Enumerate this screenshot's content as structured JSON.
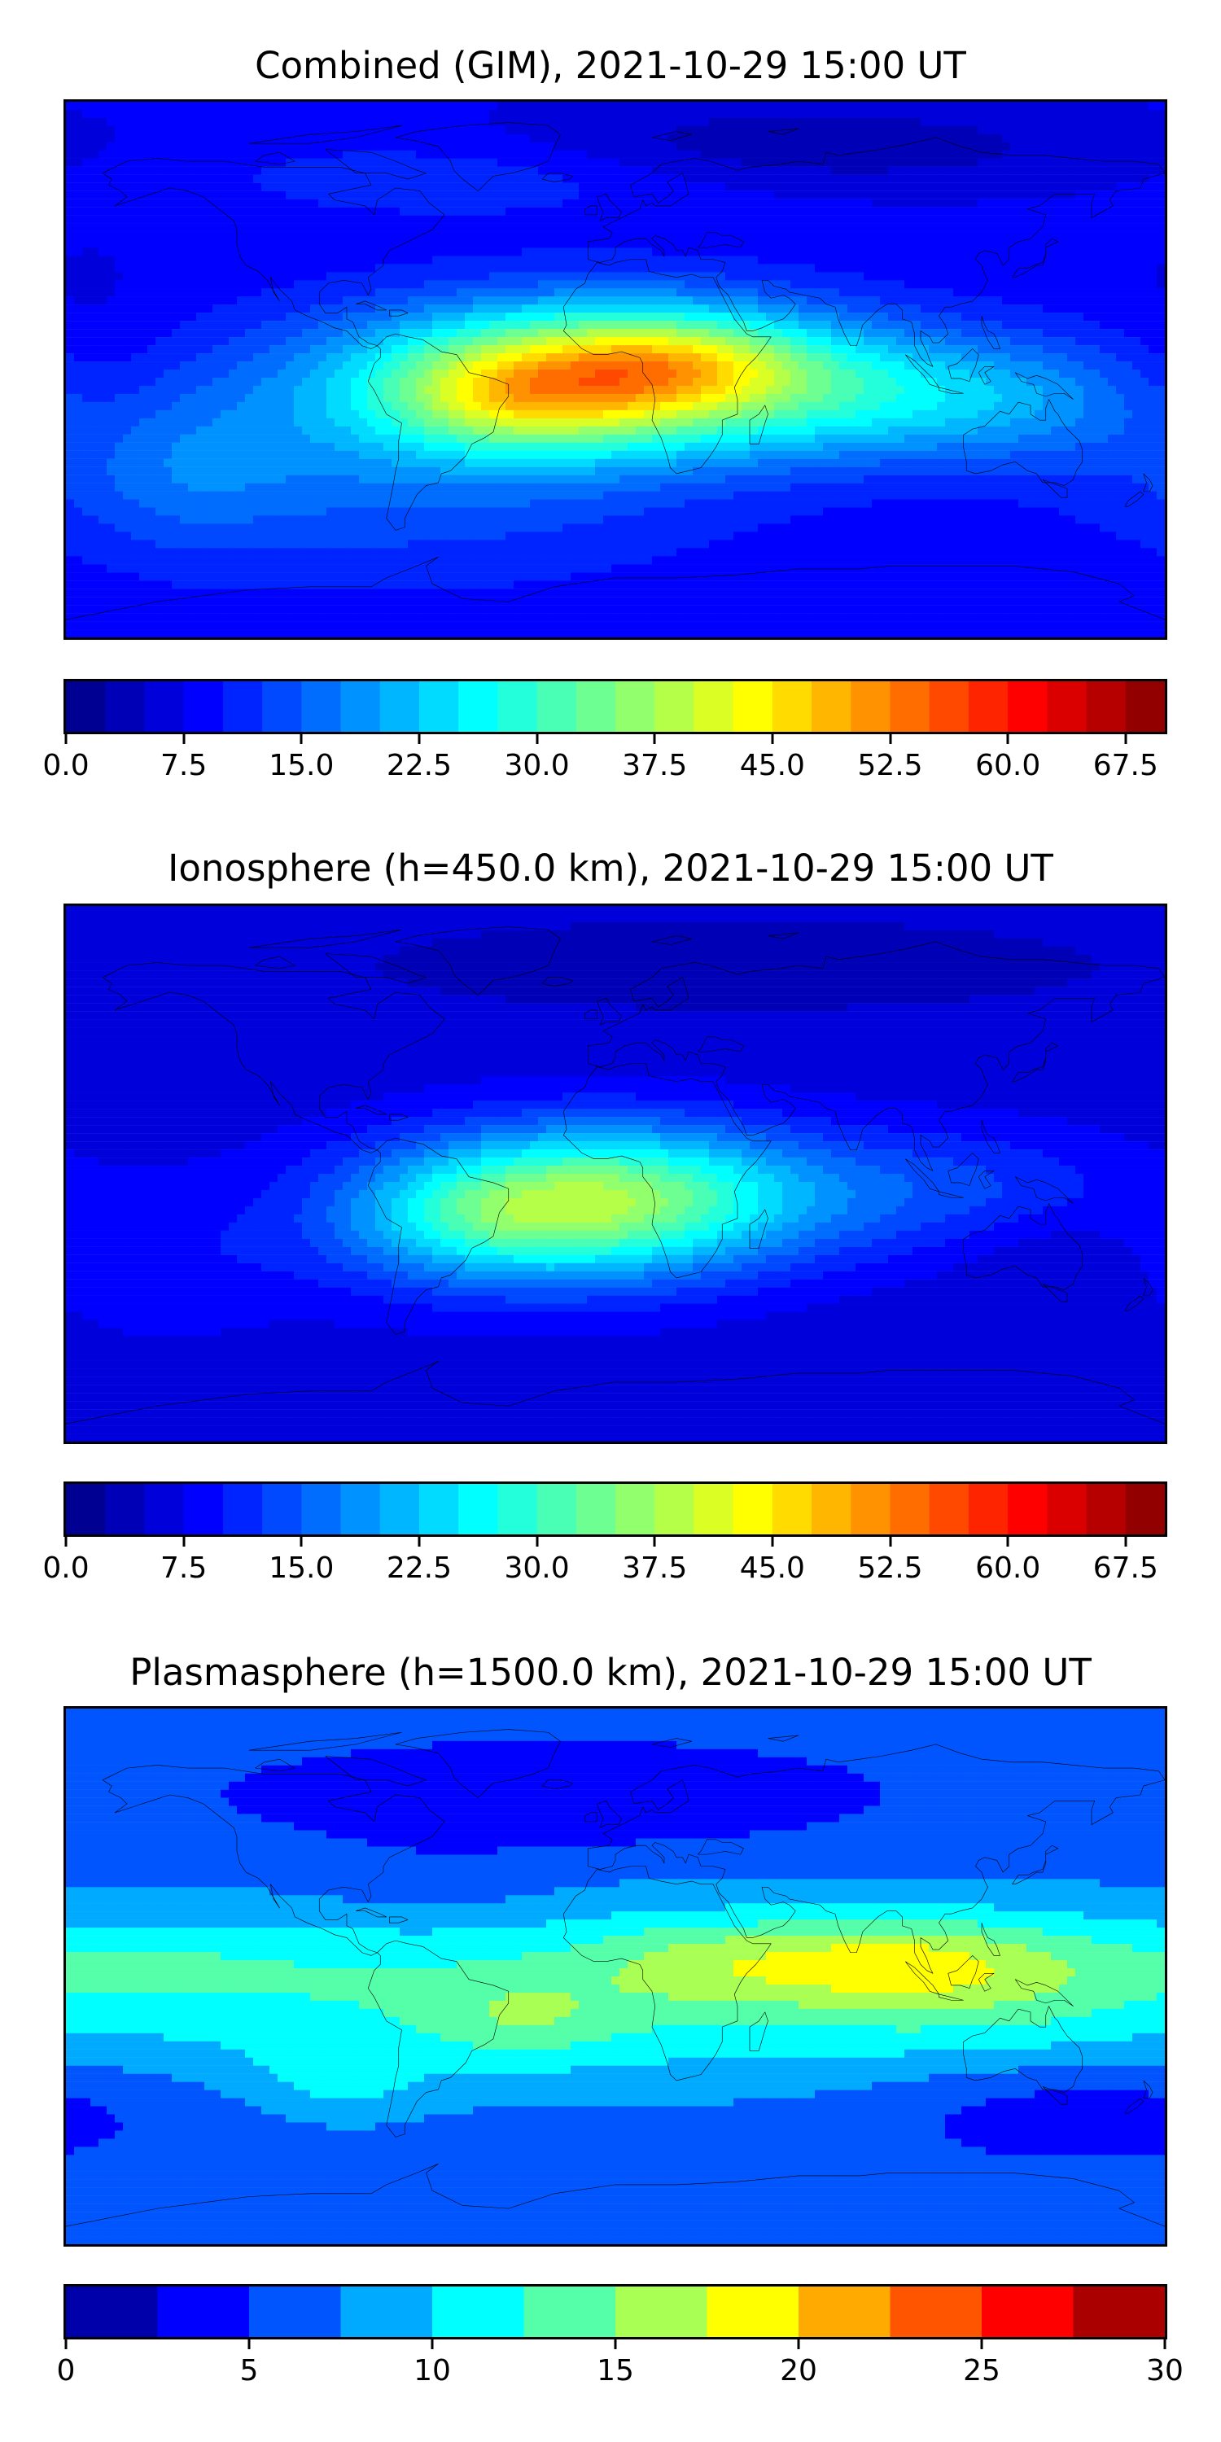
{
  "panels": [
    {
      "title": "Combined (GIM), 2021-10-29 15:00 UT",
      "colorbar": {
        "min": 0.0,
        "max": 70.0,
        "levels": 28,
        "tick_labels": [
          "0.0",
          "7.5",
          "15.0",
          "22.5",
          "30.0",
          "37.5",
          "45.0",
          "52.5",
          "60.0",
          "67.5"
        ],
        "tick_values": [
          0.0,
          7.5,
          15.0,
          22.5,
          30.0,
          37.5,
          45.0,
          52.5,
          60.0,
          67.5
        ]
      },
      "field": {
        "base": 8,
        "features": [
          {
            "lon": -75,
            "lat": -28,
            "amp": 8,
            "slon": 80,
            "slat": 28
          },
          {
            "lon": 0,
            "lat": -2,
            "amp": 34,
            "slon": 55,
            "slat": 17
          },
          {
            "lon": -35,
            "lat": -10,
            "amp": 10,
            "slon": 28,
            "slat": 12
          },
          {
            "lon": 20,
            "lat": 2,
            "amp": 8,
            "slon": 28,
            "slat": 10
          },
          {
            "lon": 110,
            "lat": -10,
            "amp": 12,
            "slon": 45,
            "slat": 15
          },
          {
            "lon": -150,
            "lat": -35,
            "amp": 5,
            "slon": 30,
            "slat": 18
          },
          {
            "lon": -50,
            "lat": 65,
            "amp": 4,
            "slon": 60,
            "slat": 10
          },
          {
            "lon": 60,
            "lat": 75,
            "amp": -5,
            "slon": 70,
            "slat": 10
          },
          {
            "lon": -170,
            "lat": -10,
            "amp": -3,
            "slon": 20,
            "slat": 30
          }
        ]
      }
    },
    {
      "title": "Ionosphere  (h=450.0 km), 2021-10-29 15:00 UT",
      "colorbar": {
        "min": 0.0,
        "max": 70.0,
        "levels": 28,
        "tick_labels": [
          "0.0",
          "7.5",
          "15.0",
          "22.5",
          "30.0",
          "37.5",
          "45.0",
          "52.5",
          "60.0",
          "67.5"
        ],
        "tick_values": [
          0.0,
          7.5,
          15.0,
          22.5,
          30.0,
          37.5,
          45.0,
          52.5,
          60.0,
          67.5
        ]
      },
      "field": {
        "base": 6,
        "features": [
          {
            "lon": -5,
            "lat": -8,
            "amp": 30,
            "slon": 50,
            "slat": 17
          },
          {
            "lon": -45,
            "lat": -15,
            "amp": 6,
            "slon": 30,
            "slat": 12
          },
          {
            "lon": -40,
            "lat": -30,
            "amp": 4,
            "slon": 50,
            "slat": 15
          },
          {
            "lon": 115,
            "lat": -5,
            "amp": 6,
            "slon": 40,
            "slat": 15
          },
          {
            "lon": -150,
            "lat": -30,
            "amp": 3,
            "slon": 30,
            "slat": 20
          },
          {
            "lon": 40,
            "lat": 70,
            "amp": -3,
            "slon": 80,
            "slat": 10
          },
          {
            "lon": 140,
            "lat": -25,
            "amp": -2,
            "slon": 20,
            "slat": 10
          }
        ]
      }
    },
    {
      "title": "Plasmasphere (h=1500.0 km), 2021-10-29 15:00 UT",
      "colorbar": {
        "min": 0,
        "max": 30,
        "levels": 12,
        "tick_labels": [
          "0",
          "5",
          "10",
          "15",
          "20",
          "25",
          "30"
        ],
        "tick_values": [
          0,
          5,
          10,
          15,
          20,
          25,
          30
        ]
      },
      "field": {
        "base": 6,
        "features": [
          {
            "lon": 0,
            "lat": -5,
            "amp": 7,
            "slon": 180,
            "slat": 22
          },
          {
            "lon": 85,
            "lat": 5,
            "amp": 6,
            "slon": 35,
            "slat": 10
          },
          {
            "lon": 130,
            "lat": 0,
            "amp": 3,
            "slon": 40,
            "slat": 15
          },
          {
            "lon": 25,
            "lat": 5,
            "amp": 3,
            "slon": 25,
            "slat": 10
          },
          {
            "lon": -90,
            "lat": -35,
            "amp": 3,
            "slon": 20,
            "slat": 10
          },
          {
            "lon": -30,
            "lat": -15,
            "amp": 3,
            "slon": 20,
            "slat": 10
          },
          {
            "lon": -150,
            "lat": 5,
            "amp": 2,
            "slon": 40,
            "slat": 10
          },
          {
            "lon": -20,
            "lat": 60,
            "amp": -3.5,
            "slon": 70,
            "slat": 12
          },
          {
            "lon": 150,
            "lat": -45,
            "amp": -3,
            "slon": 45,
            "slat": 12
          },
          {
            "lon": -60,
            "lat": 30,
            "amp": -1.5,
            "slon": 30,
            "slat": 10
          }
        ]
      }
    }
  ]
}
